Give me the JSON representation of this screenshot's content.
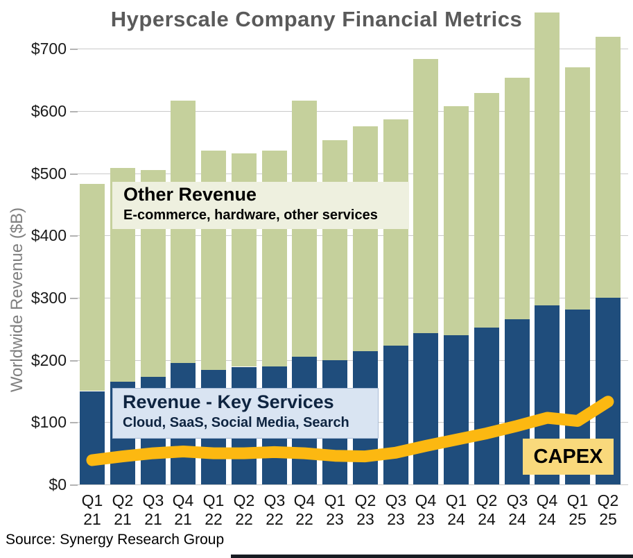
{
  "page": {
    "title": "Hyperscale Company Financial Metrics",
    "source": "Source: Synergy Research Group"
  },
  "chart_data": {
    "type": "bar",
    "stacked": true,
    "title": "Hyperscale Company Financial Metrics",
    "xlabel": "",
    "ylabel": "Worldwide Revenue ($B)",
    "ylim": [
      0,
      760
    ],
    "grid": true,
    "legend_position": "in-plot label boxes",
    "y_ticks": [
      0,
      100,
      200,
      300,
      400,
      500,
      600,
      700
    ],
    "y_tick_labels": [
      "$0",
      "$100",
      "$200",
      "$300",
      "$400",
      "$500",
      "$600",
      "$700"
    ],
    "categories": [
      "Q1 21",
      "Q2 21",
      "Q3 21",
      "Q4 21",
      "Q1 22",
      "Q2 22",
      "Q3 22",
      "Q4 22",
      "Q1 23",
      "Q2 23",
      "Q3 23",
      "Q4 23",
      "Q1 24",
      "Q2 24",
      "Q3 24",
      "Q4 24",
      "Q1 25",
      "Q2 25"
    ],
    "series": [
      {
        "name": "Revenue - Key Services",
        "color": "#1f4d7c",
        "values": [
          150,
          165,
          173,
          195,
          184,
          189,
          190,
          205,
          200,
          214,
          223,
          243,
          240,
          252,
          265,
          288,
          281,
          300
        ]
      },
      {
        "name": "Other Revenue",
        "color": "#c5d09c",
        "values": [
          333,
          343,
          332,
          422,
          352,
          343,
          346,
          412,
          353,
          361,
          363,
          441,
          368,
          377,
          388,
          470,
          389,
          419
        ]
      }
    ],
    "totals": [
      483,
      508,
      505,
      617,
      536,
      532,
      536,
      617,
      553,
      575,
      586,
      684,
      608,
      629,
      653,
      758,
      670,
      719
    ],
    "line_series": {
      "name": "CAPEX",
      "color": "#fcb811",
      "values": [
        39,
        45,
        50,
        53,
        50,
        50,
        52,
        50,
        46,
        45,
        51,
        62,
        72,
        82,
        94,
        107,
        102,
        133
      ]
    },
    "annotations": {
      "other_revenue": {
        "title": "Other Revenue",
        "subtitle": "E-commerce, hardware, other services"
      },
      "key_services": {
        "title": "Revenue - Key Services",
        "subtitle": "Cloud, SaaS, Social Media, Search"
      },
      "capex_label": "CAPEX"
    }
  }
}
